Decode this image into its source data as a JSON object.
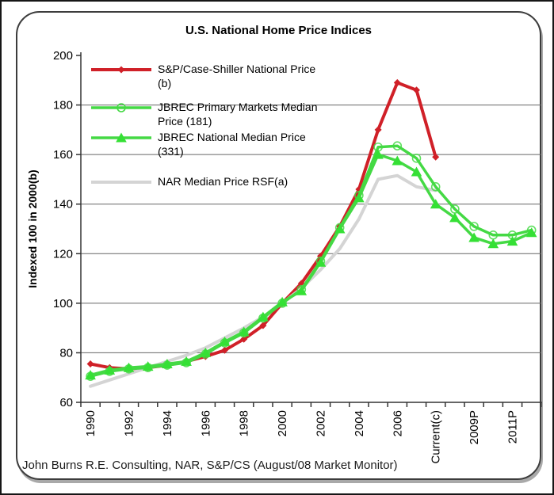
{
  "chart_data": {
    "type": "line",
    "title": "U.S. National Home Price Indices",
    "xlabel": "",
    "ylabel": "Indexed 100 in 2000(b)",
    "ylim": [
      60,
      200
    ],
    "yticks": [
      60,
      80,
      100,
      120,
      140,
      160,
      180,
      200
    ],
    "grid": "horizontal",
    "legend_position": "top-left-inside",
    "x_points_count": 24,
    "x_tick_labels": [
      "1990",
      "1992",
      "1994",
      "1996",
      "1998",
      "2000",
      "2002",
      "2004",
      "2006",
      "Current(c)",
      "2009P",
      "2011P"
    ],
    "x_labeled_indices": [
      0,
      2,
      4,
      6,
      8,
      10,
      12,
      14,
      16,
      18,
      20,
      22
    ],
    "series": [
      {
        "name": "S&P/Case-Shiller National Price (b)",
        "color": "#d02028",
        "marker": "diamond",
        "line_width": 4,
        "values": [
          75.5,
          74,
          73.5,
          74,
          75,
          76.5,
          78.5,
          81,
          85.5,
          91,
          100,
          108,
          119,
          131,
          146,
          170,
          189,
          186,
          159,
          null,
          null,
          null,
          null,
          null
        ]
      },
      {
        "name": "JBREC Primary Markets Median Price (181)",
        "color": "#44d944",
        "marker": "circle-open",
        "line_width": 3.5,
        "values": [
          70.5,
          72.5,
          73.5,
          74,
          75,
          76,
          79.5,
          84,
          88,
          94,
          100,
          105.5,
          117,
          130.5,
          143.5,
          163,
          163.5,
          158.5,
          147,
          138,
          131,
          127.5,
          127.5,
          129.5
        ]
      },
      {
        "name": "JBREC National Median Price (331)",
        "color": "#44d944",
        "marker": "triangle",
        "line_width": 3.5,
        "values": [
          71,
          73,
          74,
          74.5,
          75.5,
          76.5,
          80,
          84.5,
          88.5,
          94.5,
          100.5,
          105,
          116.5,
          130,
          142.5,
          160,
          157.5,
          153,
          140,
          134.5,
          126.5,
          124,
          125,
          128.5
        ]
      },
      {
        "name": "NAR Median Price RSF(a)",
        "color": "#d4d4d4",
        "marker": "none",
        "line_width": 4,
        "values": [
          66.5,
          69,
          71.5,
          74,
          76.5,
          79,
          82,
          86,
          90,
          94.5,
          100,
          106,
          113.5,
          122,
          134,
          150,
          151.5,
          147,
          145.5,
          null,
          null,
          null,
          null,
          null
        ]
      }
    ],
    "style": {
      "gridline_color": "#666666",
      "axis_color": "#333333",
      "marker_green": "#35e035"
    }
  },
  "footer": {
    "source_note": "John Burns R.E. Consulting, NAR, S&P/CS (August/08 Market Monitor)"
  }
}
